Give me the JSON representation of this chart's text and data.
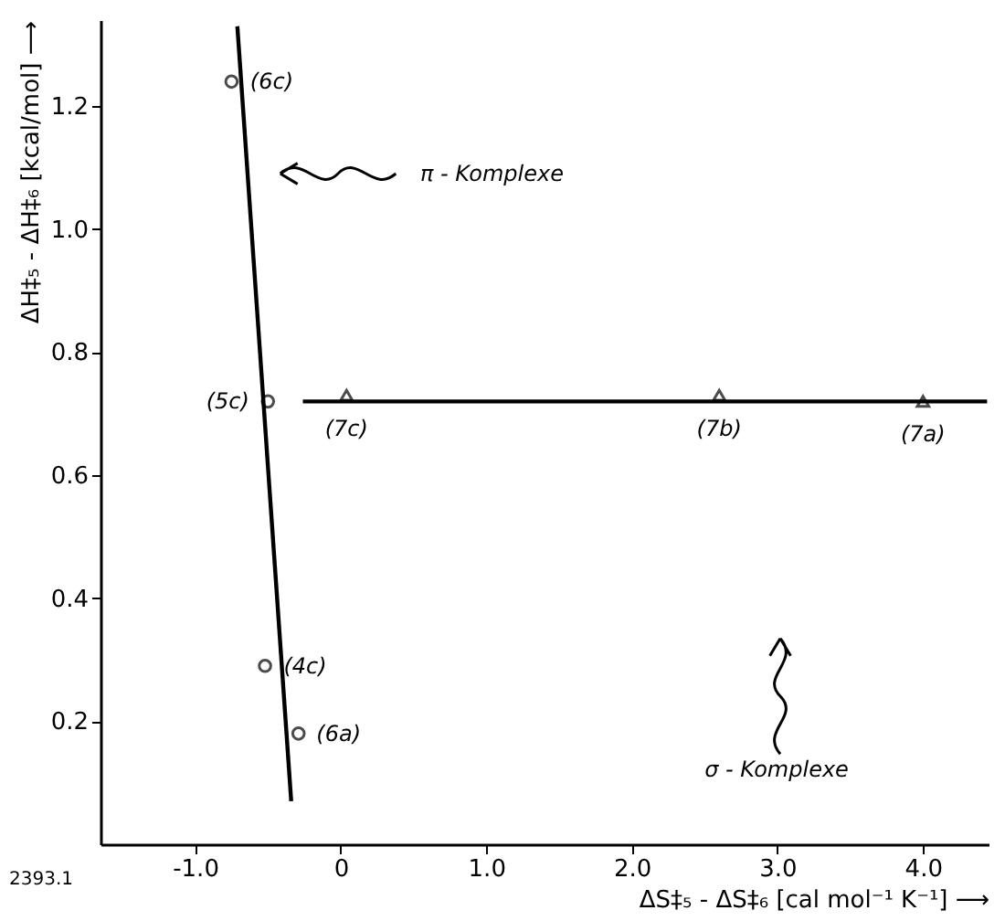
{
  "chart_data": {
    "type": "scatter",
    "xlabel": "ΔS‡₅ - ΔS‡₆ [cal mol⁻¹ K⁻¹] ⟶",
    "ylabel": "ΔH‡₅ - ΔH‡₆ [kcal/mol] ⟶",
    "series": [
      {
        "type": "scatter",
        "marker": "circle",
        "color": "#000000",
        "x": [
          -0.75,
          -0.5,
          -0.52,
          -0.29
        ],
        "values": [
          1.24,
          0.72,
          0.29,
          0.18
        ]
      },
      {
        "type": "scatter",
        "marker": "triangle",
        "color": "#000000",
        "x": [
          0.04,
          2.6,
          4.0
        ],
        "values": [
          0.73,
          0.73,
          0.72
        ]
      },
      {
        "type": "line",
        "marker": "none",
        "line_style": "solid",
        "color": "#000000",
        "x": [
          -0.71,
          -0.34
        ],
        "values": [
          1.33,
          0.07
        ]
      },
      {
        "type": "line",
        "marker": "none",
        "line_style": "solid",
        "color": "#000000",
        "x": [
          -0.26,
          4.44
        ],
        "values": [
          0.72,
          0.72
        ]
      }
    ],
    "xlim": [
      -1.65,
      4.45
    ],
    "ylim": [
      0.0,
      1.34
    ],
    "xticks": [
      {
        "value": -1.0,
        "label": "-1.0"
      },
      {
        "value": 0,
        "label": "0"
      },
      {
        "value": 1.0,
        "label": "1.0"
      },
      {
        "value": 2.0,
        "label": "2.0"
      },
      {
        "value": 3.0,
        "label": "3.0"
      },
      {
        "value": 4.0,
        "label": "4.0"
      }
    ],
    "yticks": [
      0.2,
      0.4,
      0.6,
      0.8,
      {
        "value": 1.0,
        "label": "1.0"
      },
      1.2
    ],
    "grid": false,
    "annotations": [
      {
        "text": "(6c)",
        "x": -0.75,
        "y": 1.24
      },
      {
        "text": "(5c)",
        "x": -0.5,
        "y": 0.72
      },
      {
        "text": "(4c)",
        "x": -0.52,
        "y": 0.29
      },
      {
        "text": "(6a)",
        "x": -0.29,
        "y": 0.18
      },
      {
        "text": "(7c)",
        "x": 0.04,
        "y": 0.73
      },
      {
        "text": "(7b)",
        "x": 2.6,
        "y": 0.73
      },
      {
        "text": "(7a)",
        "x": 4.0,
        "y": 0.72
      },
      "π - Komplexe",
      "σ - Komplexe",
      "2393.1"
    ]
  }
}
